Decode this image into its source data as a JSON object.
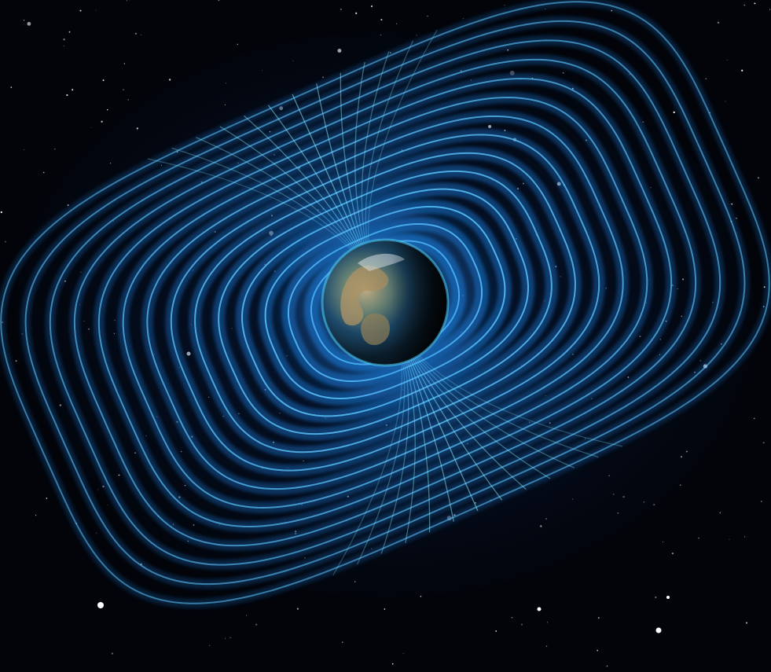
{
  "image": {
    "colors": {
      "background": "#02040a",
      "field_line": "#5ec8ff",
      "field_glow": "#1e7fe0",
      "cusp_highlight": "#8ff3ff",
      "earth_ocean": "#1d4a6b",
      "earth_land": "#8a7a5a",
      "earth_night": "#050a10",
      "star": "#ffffff"
    },
    "icons": {
      "planet": "earth-icon",
      "field": "magnetic-field-lines"
    }
  }
}
